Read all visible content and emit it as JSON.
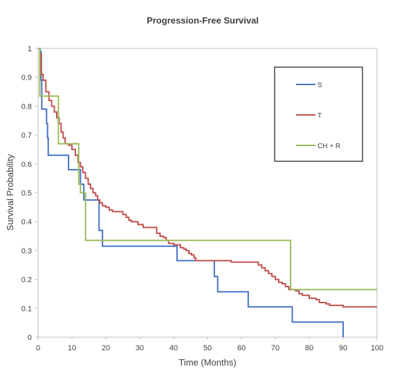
{
  "chart_data": {
    "type": "line",
    "title": "Progression-Free Survival",
    "xlabel": "Time (Months)",
    "ylabel": "Survival Probability",
    "xlim": [
      0,
      100
    ],
    "ylim": [
      0,
      1
    ],
    "xticks": [
      0,
      10,
      20,
      30,
      40,
      50,
      60,
      70,
      80,
      90,
      100
    ],
    "yticks": [
      0,
      0.1,
      0.2,
      0.3,
      0.4,
      0.5,
      0.6,
      0.7,
      0.8,
      0.9,
      1
    ],
    "ytick_labels": [
      "0",
      "0.1",
      "0.2",
      "0.3",
      "0.4",
      "0.5",
      "0.6",
      "0.7",
      "0.8",
      "0.9",
      "1"
    ],
    "grid": false,
    "legend_position": "top-right",
    "step": true,
    "series": [
      {
        "name": "S",
        "color": "#4472c4",
        "points": [
          [
            0,
            1
          ],
          [
            0.6,
            0.99
          ],
          [
            0.9,
            0.89
          ],
          [
            1.1,
            0.79
          ],
          [
            2.5,
            0.74
          ],
          [
            2.8,
            0.69
          ],
          [
            3,
            0.63
          ],
          [
            9,
            0.58
          ],
          [
            10.5,
            0.58
          ],
          [
            12.5,
            0.53
          ],
          [
            13.5,
            0.475
          ],
          [
            18,
            0.37
          ],
          [
            19,
            0.315
          ],
          [
            41,
            0.265
          ],
          [
            52,
            0.21
          ],
          [
            53,
            0.157
          ],
          [
            62,
            0.105
          ],
          [
            75,
            0.052
          ],
          [
            90,
            0
          ]
        ]
      },
      {
        "name": "T",
        "color": "#c0504d",
        "points": [
          [
            0,
            1
          ],
          [
            0.5,
            0.98
          ],
          [
            1,
            0.91
          ],
          [
            1.5,
            0.89
          ],
          [
            2.3,
            0.85
          ],
          [
            3.2,
            0.82
          ],
          [
            4,
            0.8
          ],
          [
            4.8,
            0.78
          ],
          [
            5.5,
            0.76
          ],
          [
            6.2,
            0.74
          ],
          [
            6.8,
            0.71
          ],
          [
            7.4,
            0.69
          ],
          [
            8,
            0.67
          ],
          [
            9,
            0.665
          ],
          [
            10,
            0.65
          ],
          [
            11,
            0.63
          ],
          [
            11.8,
            0.605
          ],
          [
            12.5,
            0.59
          ],
          [
            13.2,
            0.57
          ],
          [
            14,
            0.55
          ],
          [
            14.8,
            0.53
          ],
          [
            15.5,
            0.515
          ],
          [
            16.2,
            0.5
          ],
          [
            17,
            0.49
          ],
          [
            17.6,
            0.475
          ],
          [
            18.2,
            0.465
          ],
          [
            19,
            0.455
          ],
          [
            20,
            0.45
          ],
          [
            21,
            0.44
          ],
          [
            22,
            0.435
          ],
          [
            25,
            0.425
          ],
          [
            26,
            0.415
          ],
          [
            26.8,
            0.405
          ],
          [
            27.5,
            0.4
          ],
          [
            29.5,
            0.39
          ],
          [
            31,
            0.38
          ],
          [
            35,
            0.36
          ],
          [
            36,
            0.35
          ],
          [
            37,
            0.345
          ],
          [
            37.8,
            0.335
          ],
          [
            38.5,
            0.325
          ],
          [
            40,
            0.32
          ],
          [
            42,
            0.31
          ],
          [
            43,
            0.305
          ],
          [
            43.7,
            0.3
          ],
          [
            44.5,
            0.29
          ],
          [
            45.3,
            0.285
          ],
          [
            46,
            0.275
          ],
          [
            46.5,
            0.265
          ],
          [
            57,
            0.26
          ],
          [
            65,
            0.25
          ],
          [
            66,
            0.24
          ],
          [
            67,
            0.23
          ],
          [
            68,
            0.22
          ],
          [
            69,
            0.21
          ],
          [
            70,
            0.2
          ],
          [
            71,
            0.19
          ],
          [
            72,
            0.185
          ],
          [
            73,
            0.175
          ],
          [
            74,
            0.165
          ],
          [
            76,
            0.16
          ],
          [
            77,
            0.15
          ],
          [
            78,
            0.145
          ],
          [
            80,
            0.135
          ],
          [
            82,
            0.13
          ],
          [
            83,
            0.12
          ],
          [
            85,
            0.115
          ],
          [
            86,
            0.11
          ],
          [
            90,
            0.105
          ],
          [
            100,
            0.105
          ]
        ]
      },
      {
        "name": "CH + R",
        "color": "#9bbb59",
        "points": [
          [
            0,
            1
          ],
          [
            0.5,
            0.835
          ],
          [
            6,
            0.67
          ],
          [
            12,
            0.53
          ],
          [
            12.5,
            0.5
          ],
          [
            14,
            0.335
          ],
          [
            74.5,
            0.165
          ],
          [
            100,
            0.165
          ]
        ]
      }
    ]
  }
}
